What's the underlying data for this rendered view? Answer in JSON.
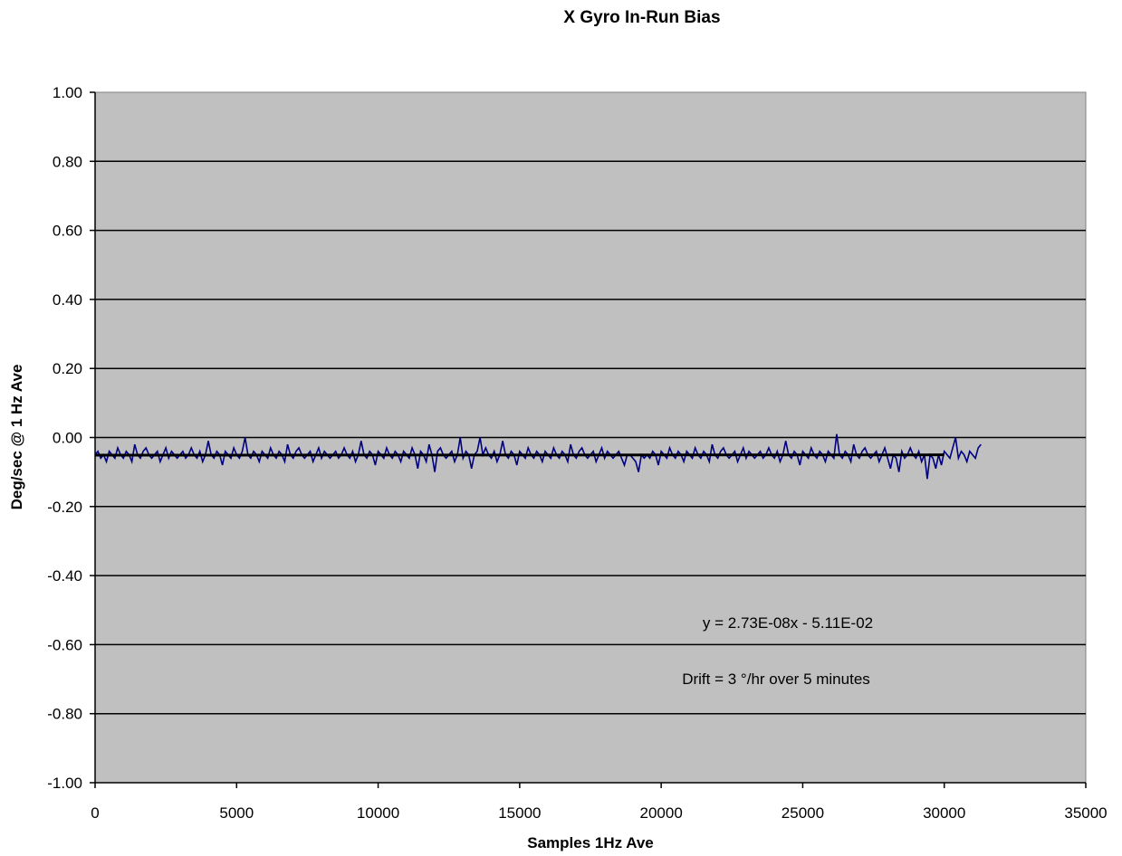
{
  "chart_data": {
    "type": "line",
    "title": "X Gyro  In-Run Bias",
    "xlabel": "Samples 1Hz Ave",
    "ylabel": "Deg/sec @ 1 Hz Ave",
    "xlim": [
      0,
      35000
    ],
    "ylim": [
      -1.0,
      1.0
    ],
    "x_ticks": [
      0,
      5000,
      10000,
      15000,
      20000,
      25000,
      30000,
      35000
    ],
    "x_tick_labels": [
      "0",
      "5000",
      "10000",
      "15000",
      "20000",
      "25000",
      "30000",
      "35000"
    ],
    "y_ticks": [
      1.0,
      0.8,
      0.6,
      0.4,
      0.2,
      0.0,
      -0.2,
      -0.4,
      -0.6,
      -0.8,
      -1.0
    ],
    "y_tick_labels": [
      "1.00",
      "0.80",
      "0.60",
      "0.40",
      "0.20",
      "0.00",
      "-0.20",
      "-0.40",
      "-0.60",
      "-0.80",
      "-1.00"
    ],
    "grid": "horizontal major gridlines",
    "legend": "none",
    "plot_background": "#c0c0c0",
    "series": [
      {
        "color": "#000080",
        "x_start": 0,
        "x_end": 30000,
        "x_step": 100,
        "values": [
          -0.05,
          -0.04,
          -0.06,
          -0.05,
          -0.07,
          -0.04,
          -0.05,
          -0.06,
          -0.03,
          -0.05,
          -0.06,
          -0.04,
          -0.05,
          -0.07,
          -0.02,
          -0.05,
          -0.06,
          -0.04,
          -0.03,
          -0.05,
          -0.06,
          -0.05,
          -0.04,
          -0.07,
          -0.05,
          -0.03,
          -0.06,
          -0.04,
          -0.05,
          -0.06,
          -0.05,
          -0.04,
          -0.06,
          -0.05,
          -0.03,
          -0.05,
          -0.06,
          -0.04,
          -0.07,
          -0.05,
          -0.01,
          -0.05,
          -0.06,
          -0.04,
          -0.05,
          -0.08,
          -0.04,
          -0.05,
          -0.06,
          -0.03,
          -0.05,
          -0.06,
          -0.04,
          0.0,
          -0.05,
          -0.06,
          -0.04,
          -0.05,
          -0.07,
          -0.04,
          -0.05,
          -0.06,
          -0.03,
          -0.05,
          -0.06,
          -0.04,
          -0.05,
          -0.07,
          -0.02,
          -0.05,
          -0.06,
          -0.04,
          -0.03,
          -0.05,
          -0.06,
          -0.05,
          -0.04,
          -0.07,
          -0.05,
          -0.03,
          -0.06,
          -0.04,
          -0.05,
          -0.06,
          -0.05,
          -0.04,
          -0.06,
          -0.05,
          -0.03,
          -0.05,
          -0.06,
          -0.04,
          -0.07,
          -0.05,
          -0.01,
          -0.05,
          -0.06,
          -0.04,
          -0.05,
          -0.08,
          -0.04,
          -0.05,
          -0.06,
          -0.03,
          -0.05,
          -0.06,
          -0.04,
          -0.05,
          -0.07,
          -0.04,
          -0.05,
          -0.06,
          -0.03,
          -0.05,
          -0.09,
          -0.04,
          -0.05,
          -0.07,
          -0.02,
          -0.05,
          -0.1,
          -0.04,
          -0.03,
          -0.05,
          -0.06,
          -0.05,
          -0.04,
          -0.07,
          -0.05,
          0.0,
          -0.06,
          -0.04,
          -0.05,
          -0.09,
          -0.05,
          -0.04,
          0.0,
          -0.05,
          -0.03,
          -0.05,
          -0.06,
          -0.04,
          -0.07,
          -0.05,
          -0.01,
          -0.05,
          -0.06,
          -0.04,
          -0.05,
          -0.08,
          -0.04,
          -0.05,
          -0.06,
          -0.03,
          -0.05,
          -0.06,
          -0.04,
          -0.05,
          -0.07,
          -0.04,
          -0.05,
          -0.06,
          -0.03,
          -0.05,
          -0.06,
          -0.04,
          -0.05,
          -0.07,
          -0.02,
          -0.05,
          -0.06,
          -0.04,
          -0.03,
          -0.05,
          -0.06,
          -0.05,
          -0.04,
          -0.07,
          -0.05,
          -0.03,
          -0.06,
          -0.04,
          -0.05,
          -0.06,
          -0.05,
          -0.04,
          -0.06,
          -0.08,
          -0.05,
          -0.05,
          -0.06,
          -0.07,
          -0.1,
          -0.05,
          -0.06,
          -0.05,
          -0.06,
          -0.04,
          -0.05,
          -0.08,
          -0.04,
          -0.05,
          -0.06,
          -0.03,
          -0.05,
          -0.06,
          -0.04,
          -0.05,
          -0.07,
          -0.04,
          -0.05,
          -0.06,
          -0.03,
          -0.05,
          -0.06,
          -0.04,
          -0.05,
          -0.07,
          -0.02,
          -0.05,
          -0.06,
          -0.04,
          -0.03,
          -0.05,
          -0.06,
          -0.05,
          -0.04,
          -0.07,
          -0.05,
          -0.03,
          -0.06,
          -0.04,
          -0.05,
          -0.06,
          -0.05,
          -0.04,
          -0.06,
          -0.05,
          -0.03,
          -0.05,
          -0.06,
          -0.04,
          -0.07,
          -0.05,
          -0.01,
          -0.05,
          -0.06,
          -0.04,
          -0.05,
          -0.08,
          -0.04,
          -0.05,
          -0.06,
          -0.03,
          -0.05,
          -0.06,
          -0.04,
          -0.05,
          -0.07,
          -0.04,
          -0.05,
          -0.06,
          0.01,
          -0.05,
          -0.06,
          -0.04,
          -0.05,
          -0.07,
          -0.02,
          -0.05,
          -0.06,
          -0.04,
          -0.03,
          -0.05,
          -0.06,
          -0.05,
          -0.04,
          -0.07,
          -0.05,
          -0.03,
          -0.06,
          -0.09,
          -0.05,
          -0.06,
          -0.1,
          -0.04,
          -0.06,
          -0.05,
          -0.03,
          -0.05,
          -0.06,
          -0.04,
          -0.07,
          -0.05,
          -0.12,
          -0.05,
          -0.06,
          -0.09,
          -0.05,
          -0.08,
          -0.04,
          -0.05,
          -0.06,
          -0.03,
          0.0,
          -0.06,
          -0.04,
          -0.05,
          -0.07,
          -0.04,
          -0.05,
          -0.06,
          -0.03,
          -0.02
        ]
      }
    ],
    "trendline": {
      "label": "y = 2.73E-08x - 5.11E-02",
      "slope": 2.73e-08,
      "intercept": -0.0511,
      "x_range": [
        0,
        30000
      ],
      "color": "#000000"
    },
    "annotations": [
      "y = 2.73E-08x - 5.11E-02",
      "Drift = 3 °/hr over 5 minutes"
    ]
  }
}
